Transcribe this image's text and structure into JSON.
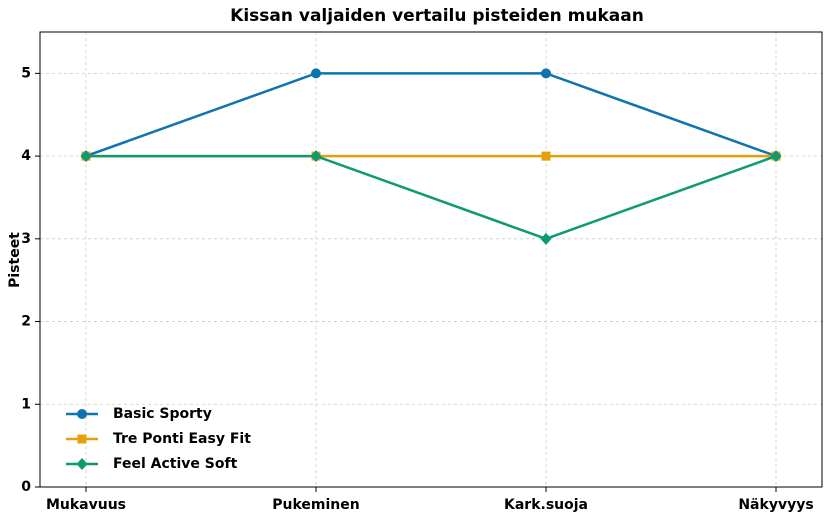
{
  "chart_data": {
    "type": "line",
    "title": "Kissan valjaiden vertailu pisteiden mukaan",
    "y_label": "Pisteet",
    "categories": [
      "Mukavuus",
      "Pukeminen",
      "Kark.suoja",
      "Näkyvyys"
    ],
    "series": [
      {
        "name": "Basic Sporty",
        "color": "#0f73b0",
        "marker": "circle",
        "values": [
          4,
          5,
          5,
          4
        ]
      },
      {
        "name": "Tre Ponti Easy Fit",
        "color": "#e5a00d",
        "marker": "square",
        "values": [
          4,
          4,
          4,
          4
        ]
      },
      {
        "name": "Feel Active Soft",
        "color": "#0b9a73",
        "marker": "diamond",
        "values": [
          4,
          4,
          3,
          4
        ]
      }
    ],
    "ylim": [
      0,
      5.5
    ],
    "yticks": [
      0,
      1,
      2,
      3,
      4,
      5
    ],
    "grid": true,
    "legend": "lower left"
  }
}
